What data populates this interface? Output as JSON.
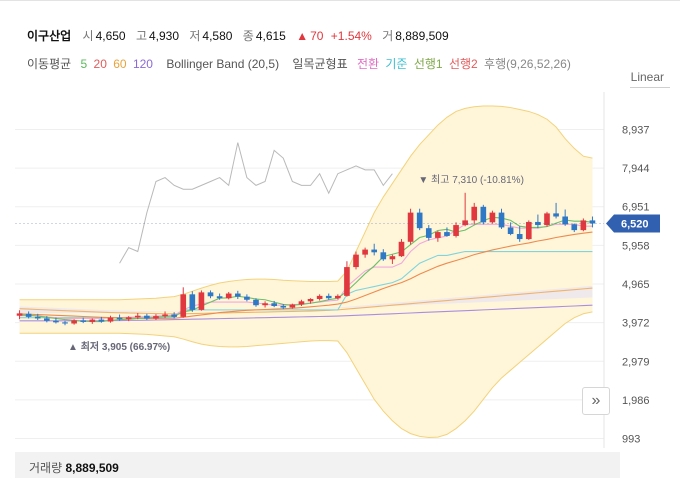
{
  "stock": {
    "name": "이구산업",
    "open_label": "시",
    "open": "4,650",
    "high_label": "고",
    "high": "4,930",
    "low_label": "저",
    "low": "4,580",
    "close_label": "종",
    "close": "4,615",
    "change_arrow": "▲",
    "change": "70",
    "change_pct": "+1.54%",
    "volume_label": "거",
    "volume": "8,889,509"
  },
  "indicators": {
    "ma_label": "이동평균",
    "ma5": "5",
    "ma20": "20",
    "ma60": "60",
    "ma120": "120",
    "bollinger": "Bollinger Band (20,5)",
    "ichimoku": "일목균형표",
    "conv": "전환",
    "base": "기준",
    "span1": "선행1",
    "span2": "선행2",
    "lag": "후행(9,26,52,26)"
  },
  "scale_label": "Linear",
  "volume_panel": {
    "label": "거래량",
    "value": "8,889,509"
  },
  "colors": {
    "up": "#e0383e",
    "down": "#2f78c6",
    "band": "#fff6d9",
    "band_edge": "#f3d27a",
    "price_tag": "#3160b0"
  },
  "chart_data": {
    "type": "candlestick",
    "y_ticks": [
      "8,937",
      "7,944",
      "6,951",
      "5,958",
      "4,965",
      "3,972",
      "2,979",
      "1,986",
      "993"
    ],
    "y_tick_values": [
      8937,
      7944,
      6951,
      5958,
      4965,
      3972,
      2979,
      1986,
      993
    ],
    "ylim": [
      750,
      9900
    ],
    "current_price_tag": "6,520",
    "current_price": 6520,
    "max_annotation": "최고 7,310 (-10.81%)",
    "max_value": 7310,
    "min_annotation": "최저 3,905 (66.97%)",
    "min_value": 3905,
    "candles": [
      [
        4150,
        4290,
        4060,
        4210
      ],
      [
        4200,
        4260,
        4080,
        4120
      ],
      [
        4120,
        4200,
        4040,
        4080
      ],
      [
        4080,
        4140,
        3980,
        4020
      ],
      [
        4020,
        4100,
        3950,
        3980
      ],
      [
        3980,
        4020,
        3905,
        3950
      ],
      [
        3950,
        4060,
        3920,
        4030
      ],
      [
        4030,
        4100,
        3960,
        3990
      ],
      [
        3990,
        4080,
        3940,
        4050
      ],
      [
        4050,
        4120,
        3970,
        4000
      ],
      [
        4000,
        4150,
        3970,
        4100
      ],
      [
        4100,
        4180,
        4020,
        4060
      ],
      [
        4060,
        4140,
        4010,
        4110
      ],
      [
        4110,
        4220,
        4060,
        4150
      ],
      [
        4150,
        4200,
        4040,
        4080
      ],
      [
        4080,
        4190,
        4040,
        4140
      ],
      [
        4140,
        4260,
        4090,
        4180
      ],
      [
        4180,
        4240,
        4080,
        4120
      ],
      [
        4120,
        4880,
        4100,
        4700
      ],
      [
        4700,
        4780,
        4250,
        4300
      ],
      [
        4300,
        4800,
        4280,
        4750
      ],
      [
        4750,
        4800,
        4600,
        4650
      ],
      [
        4650,
        4720,
        4560,
        4600
      ],
      [
        4600,
        4760,
        4570,
        4720
      ],
      [
        4720,
        4790,
        4580,
        4640
      ],
      [
        4640,
        4700,
        4520,
        4560
      ],
      [
        4560,
        4600,
        4380,
        4420
      ],
      [
        4420,
        4520,
        4360,
        4470
      ],
      [
        4470,
        4530,
        4370,
        4400
      ],
      [
        4400,
        4450,
        4320,
        4360
      ],
      [
        4360,
        4460,
        4330,
        4440
      ],
      [
        4440,
        4560,
        4400,
        4520
      ],
      [
        4520,
        4600,
        4460,
        4580
      ],
      [
        4580,
        4700,
        4540,
        4660
      ],
      [
        4660,
        4720,
        4560,
        4600
      ],
      [
        4600,
        4700,
        4570,
        4660
      ],
      [
        4660,
        5550,
        4640,
        5400
      ],
      [
        5400,
        5800,
        5340,
        5720
      ],
      [
        5720,
        5900,
        5640,
        5850
      ],
      [
        5850,
        6000,
        5700,
        5780
      ],
      [
        5780,
        5860,
        5560,
        5600
      ],
      [
        5600,
        5720,
        5480,
        5680
      ],
      [
        5680,
        6120,
        5660,
        6050
      ],
      [
        6050,
        6900,
        5980,
        6800
      ],
      [
        6800,
        6900,
        6350,
        6400
      ],
      [
        6400,
        6480,
        6080,
        6150
      ],
      [
        6150,
        6330,
        6050,
        6300
      ],
      [
        6300,
        6420,
        6180,
        6200
      ],
      [
        6200,
        6550,
        6160,
        6480
      ],
      [
        6480,
        7310,
        6450,
        6600
      ],
      [
        6600,
        7050,
        6500,
        6950
      ],
      [
        6950,
        7000,
        6500,
        6550
      ],
      [
        6550,
        6850,
        6520,
        6800
      ],
      [
        6800,
        6900,
        6380,
        6420
      ],
      [
        6420,
        6550,
        6220,
        6250
      ],
      [
        6250,
        6450,
        6050,
        6120
      ],
      [
        6120,
        6600,
        6100,
        6560
      ],
      [
        6560,
        6750,
        6400,
        6480
      ],
      [
        6480,
        6820,
        6440,
        6780
      ],
      [
        6780,
        7050,
        6650,
        6700
      ],
      [
        6700,
        6880,
        6460,
        6500
      ],
      [
        6500,
        6520,
        6300,
        6350
      ],
      [
        6350,
        6650,
        6320,
        6600
      ],
      [
        6600,
        6700,
        6420,
        6520
      ]
    ],
    "ma5": [
      4170,
      4160,
      4140,
      4110,
      4080,
      4050,
      4030,
      4010,
      4000,
      4000,
      4030,
      4050,
      4060,
      4080,
      4090,
      4110,
      4130,
      4140,
      4250,
      4290,
      4400,
      4500,
      4600,
      4610,
      4650,
      4620,
      4580,
      4560,
      4500,
      4440,
      4420,
      4440,
      4470,
      4510,
      4560,
      4600,
      4780,
      5000,
      5230,
      5430,
      5670,
      5730,
      5790,
      5980,
      6160,
      6220,
      6340,
      6370,
      6300,
      6350,
      6480,
      6590,
      6680,
      6660,
      6600,
      6450,
      6420,
      6420,
      6440,
      6530,
      6610,
      6580,
      6580,
      6550
    ],
    "ma20": [
      4200,
      4190,
      4180,
      4170,
      4160,
      4150,
      4140,
      4130,
      4120,
      4110,
      4100,
      4095,
      4090,
      4085,
      4080,
      4080,
      4082,
      4085,
      4110,
      4140,
      4170,
      4200,
      4230,
      4250,
      4270,
      4290,
      4300,
      4310,
      4320,
      4330,
      4340,
      4360,
      4380,
      4400,
      4420,
      4450,
      4500,
      4580,
      4670,
      4760,
      4850,
      4930,
      5000,
      5100,
      5220,
      5320,
      5420,
      5500,
      5570,
      5640,
      5720,
      5780,
      5840,
      5890,
      5940,
      5980,
      6020,
      6070,
      6110,
      6160,
      6200,
      6240,
      6270,
      6300
    ],
    "ma60": [
      4330,
      4320,
      4310,
      4300,
      4290,
      4280,
      4270,
      4260,
      4250,
      4240,
      4230,
      4225,
      4220,
      4215,
      4210,
      4205,
      4200,
      4200,
      4200,
      4205,
      4210,
      4215,
      4220,
      4225,
      4230,
      4235,
      4240,
      4245,
      4250,
      4255,
      4260,
      4265,
      4270,
      4280,
      4290,
      4300,
      4320,
      4340,
      4360,
      4380,
      4400,
      4420,
      4440,
      4460,
      4480,
      4500,
      4520,
      4540,
      4560,
      4580,
      4600,
      4620,
      4640,
      4660,
      4680,
      4700,
      4720,
      4740,
      4760,
      4780,
      4800,
      4820,
      4840,
      4860
    ],
    "ma120": [
      4020,
      4020,
      4020,
      4020,
      4020,
      4020,
      4020,
      4020,
      4020,
      4020,
      4025,
      4025,
      4030,
      4030,
      4035,
      4040,
      4045,
      4050,
      4055,
      4060,
      4065,
      4070,
      4075,
      4080,
      4085,
      4090,
      4095,
      4100,
      4105,
      4110,
      4115,
      4120,
      4125,
      4130,
      4135,
      4140,
      4150,
      4160,
      4170,
      4180,
      4190,
      4200,
      4210,
      4220,
      4230,
      4240,
      4250,
      4260,
      4270,
      4280,
      4290,
      4300,
      4310,
      4320,
      4330,
      4340,
      4350,
      4360,
      4370,
      4380,
      4390,
      4400,
      4410,
      4420
    ],
    "bb_upper": [
      4560,
      4560,
      4560,
      4560,
      4560,
      4560,
      4560,
      4560,
      4560,
      4560,
      4560,
      4560,
      4570,
      4580,
      4590,
      4600,
      4620,
      4640,
      4700,
      4780,
      4860,
      4930,
      4990,
      5030,
      5060,
      5080,
      5090,
      5090,
      5080,
      5060,
      5050,
      5040,
      5030,
      5030,
      5030,
      5040,
      5300,
      5800,
      6300,
      6800,
      7200,
      7550,
      7900,
      8250,
      8550,
      8800,
      9050,
      9250,
      9400,
      9480,
      9520,
      9540,
      9540,
      9530,
      9500,
      9450,
      9400,
      9320,
      9200,
      9000,
      8700,
      8450,
      8250,
      8200
    ],
    "bb_lower": [
      3700,
      3700,
      3700,
      3700,
      3700,
      3700,
      3700,
      3700,
      3700,
      3700,
      3700,
      3700,
      3690,
      3680,
      3670,
      3650,
      3630,
      3610,
      3550,
      3480,
      3420,
      3380,
      3360,
      3350,
      3350,
      3360,
      3380,
      3400,
      3420,
      3440,
      3460,
      3480,
      3500,
      3510,
      3510,
      3500,
      3200,
      2800,
      2400,
      2000,
      1700,
      1450,
      1250,
      1120,
      1050,
      1020,
      1030,
      1100,
      1250,
      1450,
      1700,
      2000,
      2300,
      2550,
      2750,
      2950,
      3150,
      3350,
      3550,
      3750,
      3950,
      4100,
      4200,
      4250
    ],
    "ich_base": [
      4100,
      4100,
      4100,
      4100,
      4100,
      4100,
      4100,
      4100,
      4100,
      4100,
      4100,
      4100,
      4100,
      4100,
      4100,
      4100,
      4100,
      4100,
      4300,
      4300,
      4300,
      4300,
      4300,
      4300,
      4300,
      4300,
      4300,
      4300,
      4300,
      4300,
      4300,
      4300,
      4300,
      4300,
      4300,
      4300,
      4700,
      4800,
      4850,
      4900,
      4950,
      5000,
      5100,
      5300,
      5500,
      5600,
      5700,
      5700,
      5750,
      5800,
      5800,
      5800,
      5800,
      5800,
      5800,
      5800,
      5800,
      5800,
      5800,
      5800,
      5800,
      5800,
      5800,
      5800
    ],
    "ich_conv": [
      4150,
      4150,
      4150,
      4120,
      4100,
      4080,
      4080,
      4080,
      4080,
      4080,
      4100,
      4100,
      4110,
      4120,
      4130,
      4140,
      4150,
      4160,
      4300,
      4400,
      4450,
      4500,
      4500,
      4500,
      4500,
      4500,
      4480,
      4450,
      4420,
      4420,
      4430,
      4450,
      4480,
      4500,
      4530,
      4550,
      4900,
      5100,
      5300,
      5400,
      5400,
      5400,
      5500,
      5800,
      6000,
      6100,
      6150,
      6200,
      6350,
      6500,
      6500,
      6500,
      6500,
      6500,
      6450,
      6400,
      6400,
      6400,
      6450,
      6500,
      6500,
      6500,
      6450,
      6450
    ],
    "lag_line": [
      5500,
      5900,
      5800,
      6800,
      7600,
      7700,
      7500,
      7400,
      7400,
      7500,
      7600,
      7700,
      7500,
      8600,
      7700,
      7500,
      7600,
      8400,
      8200,
      7600,
      7500,
      7500,
      7800,
      7300,
      7800,
      7900,
      8000,
      7900,
      7900,
      7500,
      7800
    ]
  }
}
